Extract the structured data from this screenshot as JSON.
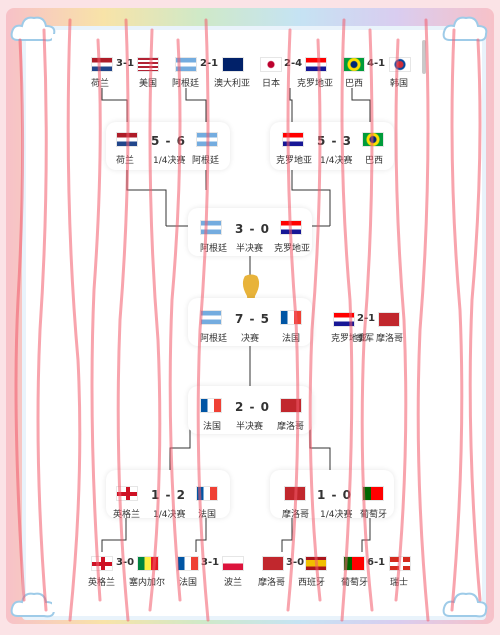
{
  "round16": [
    {
      "home": "荷兰",
      "away": "美国",
      "score": "3-1",
      "home_flag": "nl",
      "away_flag": "us"
    },
    {
      "home": "阿根廷",
      "away": "澳大利亚",
      "score": "2-1",
      "home_flag": "ar",
      "away_flag": "au"
    },
    {
      "home": "日本",
      "away": "克罗地亚",
      "score": "2-4",
      "home_flag": "jp",
      "away_flag": "hr"
    },
    {
      "home": "巴西",
      "away": "韩国",
      "score": "4-1",
      "home_flag": "br",
      "away_flag": "kr"
    },
    {
      "home": "英格兰",
      "away": "塞内加尔",
      "score": "3-0",
      "home_flag": "en",
      "away_flag": "sn"
    },
    {
      "home": "法国",
      "away": "波兰",
      "score": "3-1",
      "home_flag": "fr",
      "away_flag": "pl"
    },
    {
      "home": "摩洛哥",
      "away": "西班牙",
      "score": "3-0",
      "home_flag": "ma",
      "away_flag": "es"
    },
    {
      "home": "葡萄牙",
      "away": "瑞士",
      "score": "6-1",
      "home_flag": "pt",
      "away_flag": "ch"
    }
  ],
  "quarter": [
    {
      "home": "荷兰",
      "away": "阿根廷",
      "score": "5 - 6",
      "stage": "1/4决赛"
    },
    {
      "home": "克罗地亚",
      "away": "巴西",
      "score": "5 - 3",
      "stage": "1/4决赛"
    },
    {
      "home": "英格兰",
      "away": "法国",
      "score": "1 - 2",
      "stage": "1/4决赛"
    },
    {
      "home": "摩洛哥",
      "away": "葡萄牙",
      "score": "1 - 0",
      "stage": "1/4决赛"
    }
  ],
  "semi": [
    {
      "home": "阿根廷",
      "away": "克罗地亚",
      "score": "3 - 0",
      "stage": "半决赛"
    },
    {
      "home": "法国",
      "away": "摩洛哥",
      "score": "2 - 0",
      "stage": "半决赛"
    }
  ],
  "final": {
    "home": "阿根廷",
    "away": "法国",
    "score": "7 - 5",
    "stage": "决赛"
  },
  "third": {
    "home": "克罗地亚",
    "away": "摩洛哥",
    "score": "2-1",
    "stage": "季军"
  },
  "colors": {
    "accent": "#f25a6a",
    "bg": "#fbe3e6",
    "line": "#222222"
  }
}
